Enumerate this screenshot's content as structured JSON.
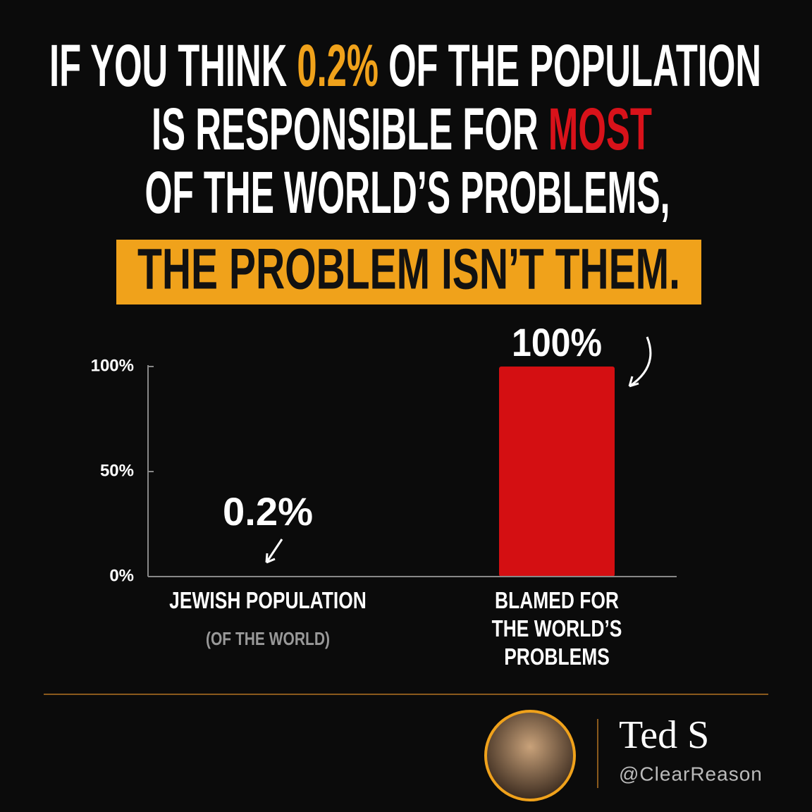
{
  "headline": {
    "lines": [
      [
        {
          "text": "IF YOU THINK ",
          "color": "#ffffff"
        },
        {
          "text": "0.2%",
          "color": "#f0a21b"
        },
        {
          "text": " OF THE POPULATION",
          "color": "#ffffff"
        }
      ],
      [
        {
          "text": "IS RESPONSIBLE FOR ",
          "color": "#ffffff"
        },
        {
          "text": "MOST",
          "color": "#d8121a"
        }
      ],
      [
        {
          "text": "OF THE WORLD’S PROBLEMS,",
          "color": "#ffffff"
        }
      ]
    ],
    "highlight": "THE PROBLEM ISN’T THEM.",
    "highlight_color": "#f0a21b"
  },
  "chart_data": {
    "type": "bar",
    "categories": [
      "JEWISH POPULATION",
      "BLAMED FOR THE WORLD’S PROBLEMS"
    ],
    "note": "(OF THE WORLD)",
    "values": [
      0.2,
      100
    ],
    "value_labels": [
      "0.2%",
      "100%"
    ],
    "color": "#d40f12",
    "ylim": [
      0,
      100
    ],
    "yticks": [
      {
        "value": 0,
        "label": "0%"
      },
      {
        "value": 50,
        "label": "50%"
      },
      {
        "value": 100,
        "label": "100%"
      }
    ]
  },
  "author": {
    "name": "Ted S",
    "handle": "@ClearReason"
  }
}
